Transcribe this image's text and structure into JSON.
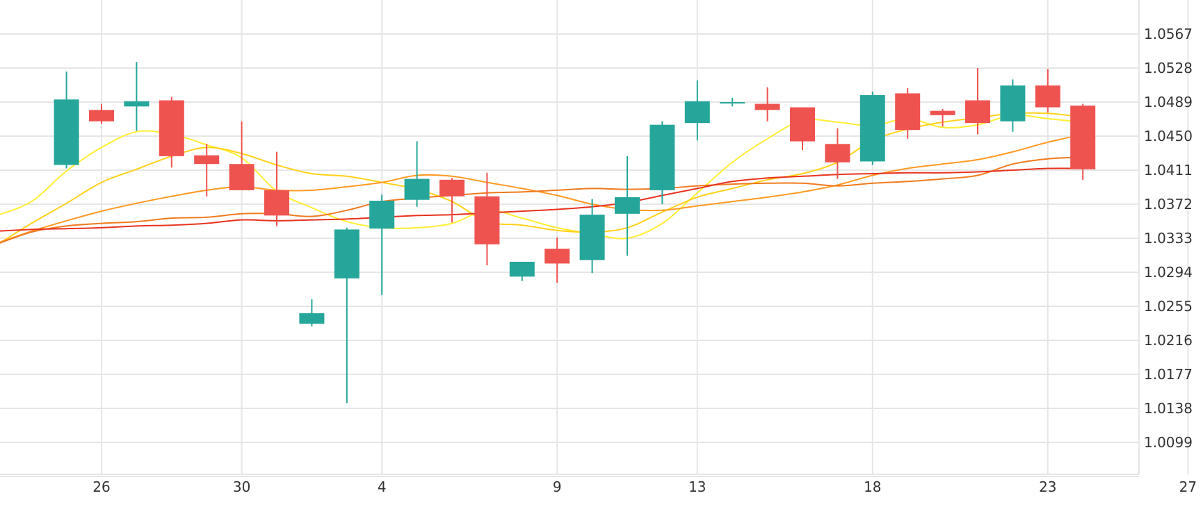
{
  "chart_data": {
    "type": "candlestick",
    "title": "",
    "xlabel": "",
    "ylabel": "",
    "colors": {
      "up": "#26a69a",
      "down": "#ef5350"
    },
    "y_ticks": [
      "1.0567",
      "1.0528",
      "1.0489",
      "1.0450",
      "1.0411",
      "1.0372",
      "1.0333",
      "1.0294",
      "1.0255",
      "1.0216",
      "1.0177",
      "1.0138",
      "1.0099"
    ],
    "x_ticks": [
      {
        "label": "26",
        "at": "2022-06-26"
      },
      {
        "label": "30",
        "at": "2022-06-30"
      },
      {
        "label": "4",
        "at": "2022-07-04"
      },
      {
        "label": "9",
        "at": "2022-07-09"
      },
      {
        "label": "13",
        "at": "2022-07-13"
      },
      {
        "label": "18",
        "at": "2022-07-18"
      },
      {
        "label": "23",
        "at": "2022-07-23"
      },
      {
        "label": "27",
        "at": "2022-07-27"
      }
    ],
    "ylim": [
      1.006,
      1.059
    ],
    "xlim": [
      "2022-06-23",
      "2022-07-29"
    ],
    "candles": [
      {
        "date": "2022-06-25",
        "open": 1.0417,
        "high": 1.0524,
        "low": 1.0413,
        "close": 1.0492
      },
      {
        "date": "2022-06-26",
        "open": 1.048,
        "high": 1.0487,
        "low": 1.0464,
        "close": 1.0467
      },
      {
        "date": "2022-06-27",
        "open": 1.0484,
        "high": 1.0535,
        "low": 1.0456,
        "close": 1.049
      },
      {
        "date": "2022-06-28",
        "open": 1.0491,
        "high": 1.0495,
        "low": 1.0414,
        "close": 1.0427
      },
      {
        "date": "2022-06-29",
        "open": 1.0428,
        "high": 1.0441,
        "low": 1.0381,
        "close": 1.0418
      },
      {
        "date": "2022-06-30",
        "open": 1.0418,
        "high": 1.0467,
        "low": 1.0389,
        "close": 1.0388
      },
      {
        "date": "2022-07-01",
        "open": 1.0388,
        "high": 1.0432,
        "low": 1.0347,
        "close": 1.0359
      },
      {
        "date": "2022-07-02",
        "open": 1.0235,
        "high": 1.0263,
        "low": 1.0232,
        "close": 1.0247
      },
      {
        "date": "2022-07-03",
        "open": 1.0287,
        "high": 1.0345,
        "low": 1.0144,
        "close": 1.0343
      },
      {
        "date": "2022-07-04",
        "open": 1.0344,
        "high": 1.0383,
        "low": 1.0268,
        "close": 1.0376
      },
      {
        "date": "2022-07-05",
        "open": 1.0377,
        "high": 1.0444,
        "low": 1.0369,
        "close": 1.0401
      },
      {
        "date": "2022-07-06",
        "open": 1.04,
        "high": 1.0402,
        "low": 1.0351,
        "close": 1.0381
      },
      {
        "date": "2022-07-07",
        "open": 1.0381,
        "high": 1.0408,
        "low": 1.0302,
        "close": 1.0326
      },
      {
        "date": "2022-07-08",
        "open": 1.0289,
        "high": 1.0304,
        "low": 1.0284,
        "close": 1.0306
      },
      {
        "date": "2022-07-09",
        "open": 1.0321,
        "high": 1.0334,
        "low": 1.0282,
        "close": 1.0304
      },
      {
        "date": "2022-07-10",
        "open": 1.0308,
        "high": 1.0378,
        "low": 1.0293,
        "close": 1.036
      },
      {
        "date": "2022-07-11",
        "open": 1.0361,
        "high": 1.0427,
        "low": 1.0313,
        "close": 1.038
      },
      {
        "date": "2022-07-12",
        "open": 1.0388,
        "high": 1.0467,
        "low": 1.0372,
        "close": 1.0463
      },
      {
        "date": "2022-07-13",
        "open": 1.0465,
        "high": 1.0514,
        "low": 1.0445,
        "close": 1.049
      },
      {
        "date": "2022-07-14",
        "open": 1.0488,
        "high": 1.0494,
        "low": 1.0484,
        "close": 1.0489
      },
      {
        "date": "2022-07-15",
        "open": 1.0487,
        "high": 1.0506,
        "low": 1.0467,
        "close": 1.048
      },
      {
        "date": "2022-07-16",
        "open": 1.0483,
        "high": 1.0483,
        "low": 1.0434,
        "close": 1.0444
      },
      {
        "date": "2022-07-17",
        "open": 1.0441,
        "high": 1.0459,
        "low": 1.0401,
        "close": 1.042
      },
      {
        "date": "2022-07-18",
        "open": 1.0421,
        "high": 1.0501,
        "low": 1.0417,
        "close": 1.0497
      },
      {
        "date": "2022-07-19",
        "open": 1.0499,
        "high": 1.0505,
        "low": 1.0447,
        "close": 1.0457
      },
      {
        "date": "2022-07-20",
        "open": 1.0479,
        "high": 1.0481,
        "low": 1.0461,
        "close": 1.0474
      },
      {
        "date": "2022-07-21",
        "open": 1.0491,
        "high": 1.0528,
        "low": 1.0452,
        "close": 1.0465
      },
      {
        "date": "2022-07-22",
        "open": 1.0467,
        "high": 1.0515,
        "low": 1.0455,
        "close": 1.0508
      },
      {
        "date": "2022-07-23",
        "open": 1.0508,
        "high": 1.0527,
        "low": 1.0477,
        "close": 1.0483
      },
      {
        "date": "2022-07-24",
        "open": 1.0485,
        "high": 1.0487,
        "low": 1.04,
        "close": 1.0412
      }
    ],
    "overlay_series": [
      {
        "color": "#ffee33",
        "points": [
          [
            "2022-06-23",
            1.0359
          ],
          [
            "2022-06-24",
            1.0375
          ],
          [
            "2022-06-25",
            1.041
          ],
          [
            "2022-06-26",
            1.0437
          ],
          [
            "2022-06-27",
            1.0455
          ],
          [
            "2022-06-28",
            1.0452
          ],
          [
            "2022-06-29",
            1.044
          ],
          [
            "2022-06-30",
            1.0425
          ],
          [
            "2022-07-01",
            1.0387
          ],
          [
            "2022-07-02",
            1.0368
          ],
          [
            "2022-07-03",
            1.0352
          ],
          [
            "2022-07-04",
            1.0345
          ],
          [
            "2022-07-05",
            1.0345
          ],
          [
            "2022-07-06",
            1.035
          ],
          [
            "2022-07-07",
            1.0365
          ],
          [
            "2022-07-08",
            1.0356
          ],
          [
            "2022-07-09",
            1.0345
          ],
          [
            "2022-07-10",
            1.0338
          ],
          [
            "2022-07-11",
            1.0333
          ],
          [
            "2022-07-12",
            1.035
          ],
          [
            "2022-07-13",
            1.0385
          ],
          [
            "2022-07-14",
            1.042
          ],
          [
            "2022-07-15",
            1.0447
          ],
          [
            "2022-07-16",
            1.0468
          ],
          [
            "2022-07-17",
            1.0466
          ],
          [
            "2022-07-18",
            1.0462
          ],
          [
            "2022-07-19",
            1.047
          ],
          [
            "2022-07-20",
            1.046
          ],
          [
            "2022-07-21",
            1.0463
          ],
          [
            "2022-07-22",
            1.0474
          ],
          [
            "2022-07-23",
            1.047
          ],
          [
            "2022-07-24",
            1.0466
          ]
        ]
      },
      {
        "color": "#ffd11a",
        "points": [
          [
            "2022-06-23",
            1.0325
          ],
          [
            "2022-06-24",
            1.035
          ],
          [
            "2022-06-25",
            1.0373
          ],
          [
            "2022-06-26",
            1.0397
          ],
          [
            "2022-06-27",
            1.0412
          ],
          [
            "2022-06-28",
            1.0427
          ],
          [
            "2022-06-29",
            1.0437
          ],
          [
            "2022-06-30",
            1.043
          ],
          [
            "2022-07-01",
            1.0417
          ],
          [
            "2022-07-02",
            1.0407
          ],
          [
            "2022-07-03",
            1.0404
          ],
          [
            "2022-07-04",
            1.0397
          ],
          [
            "2022-07-05",
            1.0389
          ],
          [
            "2022-07-06",
            1.0375
          ],
          [
            "2022-07-07",
            1.0352
          ],
          [
            "2022-07-08",
            1.0348
          ],
          [
            "2022-07-09",
            1.0342
          ],
          [
            "2022-07-10",
            1.034
          ],
          [
            "2022-07-11",
            1.0345
          ],
          [
            "2022-07-12",
            1.0363
          ],
          [
            "2022-07-13",
            1.038
          ],
          [
            "2022-07-14",
            1.039
          ],
          [
            "2022-07-15",
            1.04
          ],
          [
            "2022-07-16",
            1.0407
          ],
          [
            "2022-07-17",
            1.042
          ],
          [
            "2022-07-18",
            1.0445
          ],
          [
            "2022-07-19",
            1.0458
          ],
          [
            "2022-07-20",
            1.0466
          ],
          [
            "2022-07-21",
            1.0471
          ],
          [
            "2022-07-22",
            1.0476
          ],
          [
            "2022-07-23",
            1.0476
          ],
          [
            "2022-07-24",
            1.0472
          ]
        ]
      },
      {
        "color": "#ff9922",
        "points": [
          [
            "2022-06-23",
            1.0327
          ],
          [
            "2022-06-24",
            1.0341
          ],
          [
            "2022-06-25",
            1.0353
          ],
          [
            "2022-06-26",
            1.0364
          ],
          [
            "2022-06-27",
            1.0373
          ],
          [
            "2022-06-28",
            1.0381
          ],
          [
            "2022-06-29",
            1.0388
          ],
          [
            "2022-06-30",
            1.0392
          ],
          [
            "2022-07-01",
            1.0388
          ],
          [
            "2022-07-02",
            1.0388
          ],
          [
            "2022-07-03",
            1.0392
          ],
          [
            "2022-07-04",
            1.0397
          ],
          [
            "2022-07-05",
            1.0405
          ],
          [
            "2022-07-06",
            1.0404
          ],
          [
            "2022-07-07",
            1.0397
          ],
          [
            "2022-07-08",
            1.039
          ],
          [
            "2022-07-09",
            1.0382
          ],
          [
            "2022-07-10",
            1.0372
          ],
          [
            "2022-07-11",
            1.0366
          ],
          [
            "2022-07-12",
            1.0365
          ],
          [
            "2022-07-13",
            1.037
          ],
          [
            "2022-07-14",
            1.0375
          ],
          [
            "2022-07-15",
            1.038
          ],
          [
            "2022-07-16",
            1.0386
          ],
          [
            "2022-07-17",
            1.0394
          ],
          [
            "2022-07-18",
            1.0405
          ],
          [
            "2022-07-19",
            1.0413
          ],
          [
            "2022-07-20",
            1.0418
          ],
          [
            "2022-07-21",
            1.0423
          ],
          [
            "2022-07-22",
            1.0432
          ],
          [
            "2022-07-23",
            1.0443
          ],
          [
            "2022-07-24",
            1.0452
          ]
        ]
      },
      {
        "color": "#f07a1e",
        "points": [
          [
            "2022-06-23",
            1.0326
          ],
          [
            "2022-06-24",
            1.034
          ],
          [
            "2022-06-25",
            1.0347
          ],
          [
            "2022-06-26",
            1.035
          ],
          [
            "2022-06-27",
            1.0352
          ],
          [
            "2022-06-28",
            1.0356
          ],
          [
            "2022-06-29",
            1.0357
          ],
          [
            "2022-06-30",
            1.0361
          ],
          [
            "2022-07-01",
            1.0361
          ],
          [
            "2022-07-02",
            1.0358
          ],
          [
            "2022-07-03",
            1.0365
          ],
          [
            "2022-07-04",
            1.0375
          ],
          [
            "2022-07-05",
            1.0379
          ],
          [
            "2022-07-06",
            1.0382
          ],
          [
            "2022-07-07",
            1.0385
          ],
          [
            "2022-07-08",
            1.0386
          ],
          [
            "2022-07-09",
            1.0388
          ],
          [
            "2022-07-10",
            1.039
          ],
          [
            "2022-07-11",
            1.0389
          ],
          [
            "2022-07-12",
            1.039
          ],
          [
            "2022-07-13",
            1.0393
          ],
          [
            "2022-07-14",
            1.0395
          ],
          [
            "2022-07-15",
            1.0396
          ],
          [
            "2022-07-16",
            1.0396
          ],
          [
            "2022-07-17",
            1.0393
          ],
          [
            "2022-07-18",
            1.0396
          ],
          [
            "2022-07-19",
            1.0398
          ],
          [
            "2022-07-20",
            1.0401
          ],
          [
            "2022-07-21",
            1.0405
          ],
          [
            "2022-07-22",
            1.0418
          ],
          [
            "2022-07-23",
            1.0424
          ],
          [
            "2022-07-24",
            1.0426
          ]
        ]
      },
      {
        "color": "#e8321e",
        "points": [
          [
            "2022-06-23",
            1.0341
          ],
          [
            "2022-06-24",
            1.0343
          ],
          [
            "2022-06-25",
            1.0344
          ],
          [
            "2022-06-26",
            1.0345
          ],
          [
            "2022-06-27",
            1.0347
          ],
          [
            "2022-06-28",
            1.0348
          ],
          [
            "2022-06-29",
            1.035
          ],
          [
            "2022-06-30",
            1.0354
          ],
          [
            "2022-07-01",
            1.0353
          ],
          [
            "2022-07-02",
            1.0354
          ],
          [
            "2022-07-03",
            1.0355
          ],
          [
            "2022-07-04",
            1.0357
          ],
          [
            "2022-07-05",
            1.0359
          ],
          [
            "2022-07-06",
            1.036
          ],
          [
            "2022-07-07",
            1.0362
          ],
          [
            "2022-07-08",
            1.0364
          ],
          [
            "2022-07-09",
            1.0366
          ],
          [
            "2022-07-10",
            1.0369
          ],
          [
            "2022-07-11",
            1.0374
          ],
          [
            "2022-07-12",
            1.0382
          ],
          [
            "2022-07-13",
            1.039
          ],
          [
            "2022-07-14",
            1.0398
          ],
          [
            "2022-07-15",
            1.0402
          ],
          [
            "2022-07-16",
            1.0404
          ],
          [
            "2022-07-17",
            1.0406
          ],
          [
            "2022-07-18",
            1.0407
          ],
          [
            "2022-07-19",
            1.0408
          ],
          [
            "2022-07-20",
            1.0408
          ],
          [
            "2022-07-21",
            1.0409
          ],
          [
            "2022-07-22",
            1.0411
          ],
          [
            "2022-07-23",
            1.0413
          ],
          [
            "2022-07-24",
            1.0413
          ]
        ]
      }
    ]
  }
}
